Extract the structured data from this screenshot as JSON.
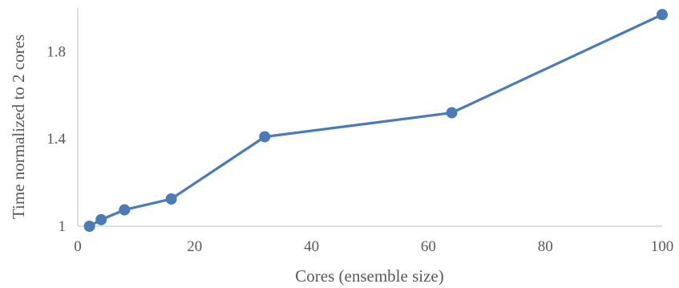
{
  "chart_data": {
    "type": "line",
    "title": "",
    "xlabel": "Cores (ensemble size)",
    "ylabel": "Time normalized to 2 cores",
    "xlim": [
      0,
      100
    ],
    "ylim": [
      1,
      2
    ],
    "xticks": [
      0,
      20,
      40,
      60,
      80,
      100
    ],
    "yticks": [
      1,
      1.4,
      1.8
    ],
    "ytick_labels": [
      "1",
      "1.4",
      "1.8"
    ],
    "grid": false,
    "legend": "none",
    "series": [
      {
        "color": "#4a7ab8",
        "x": [
          2,
          4,
          8,
          16,
          32,
          64,
          100
        ],
        "y": [
          1.0,
          1.03,
          1.075,
          1.125,
          1.41,
          1.52,
          1.97
        ]
      }
    ]
  }
}
